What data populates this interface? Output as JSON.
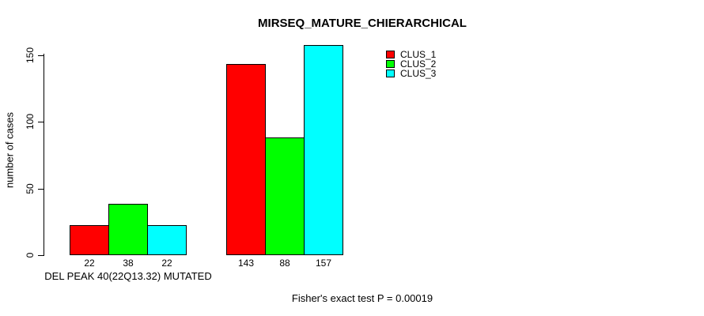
{
  "title": "MIRSEQ_MATURE_CHIERARCHICAL",
  "y_axis": {
    "label": "number of cases"
  },
  "x_axis": {
    "group1_label": "DEL PEAK 40(22Q13.32) MUTATED"
  },
  "footer": {
    "stat_text": "Fisher's exact test P = 0.00019"
  },
  "legend": {
    "items": [
      {
        "label": "CLUS_1",
        "color": "#ff0000"
      },
      {
        "label": "CLUS_2",
        "color": "#00ff00"
      },
      {
        "label": "CLUS_3",
        "color": "#00ffff"
      }
    ]
  },
  "chart_data": {
    "type": "bar",
    "title": "MIRSEQ_MATURE_CHIERARCHICAL",
    "xlabel": "",
    "ylabel": "number of cases",
    "ylim": [
      0,
      157
    ],
    "yticks": [
      0,
      50,
      100,
      150
    ],
    "grid": false,
    "legend_position": "top-right-inside",
    "categories": [
      "DEL PEAK 40(22Q13.32) MUTATED",
      ""
    ],
    "series": [
      {
        "name": "CLUS_1",
        "color": "#ff0000",
        "values": [
          22,
          143
        ]
      },
      {
        "name": "CLUS_2",
        "color": "#00ff00",
        "values": [
          38,
          88
        ]
      },
      {
        "name": "CLUS_3",
        "color": "#00ffff",
        "values": [
          22,
          157
        ]
      }
    ],
    "bar_value_labels": [
      [
        22,
        38,
        22
      ],
      [
        143,
        88,
        157
      ]
    ],
    "annotation": "Fisher's exact test P = 0.00019"
  }
}
